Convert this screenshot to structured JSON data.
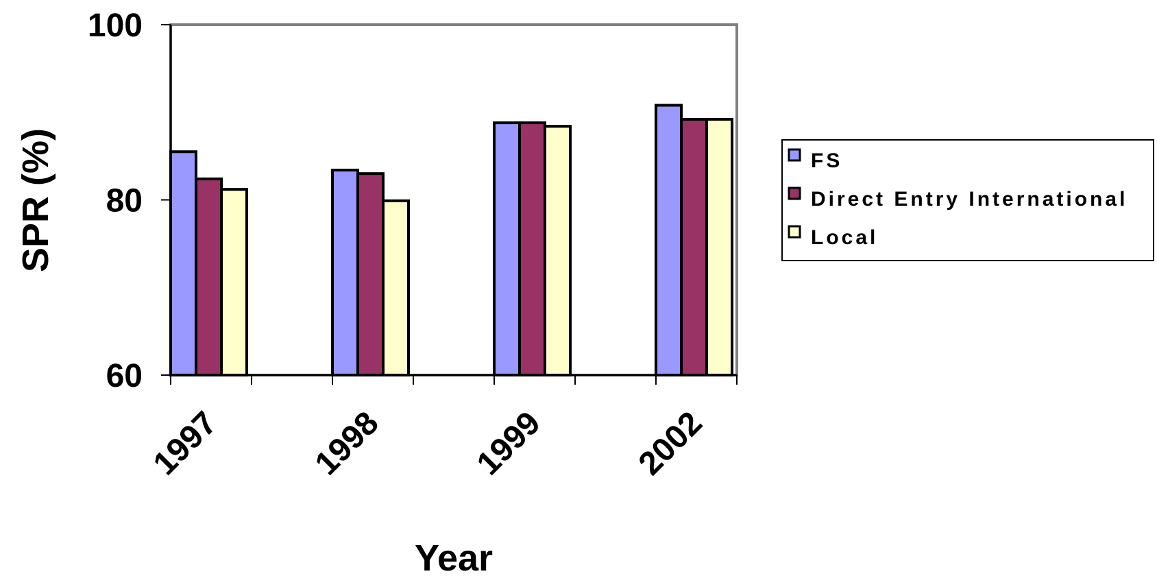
{
  "chart_data": {
    "type": "bar",
    "title": "",
    "xlabel": "Year",
    "ylabel": "SPR (%)",
    "categories": [
      "1997",
      "1998",
      "1999",
      "2002"
    ],
    "ylim": [
      60,
      100
    ],
    "yticks": [
      "60",
      "80",
      "100"
    ],
    "grid": false,
    "legend_position": "right",
    "series": [
      {
        "name": "FS",
        "values": [
          85.5,
          83.4,
          88.8,
          90.8
        ],
        "color": "#9999ff"
      },
      {
        "name": "Direct Entry International",
        "values": [
          82.4,
          83.0,
          88.8,
          89.2
        ],
        "color": "#993366"
      },
      {
        "name": "Local",
        "values": [
          81.2,
          79.9,
          88.4,
          89.2
        ],
        "color": "#ffffcc"
      }
    ]
  }
}
